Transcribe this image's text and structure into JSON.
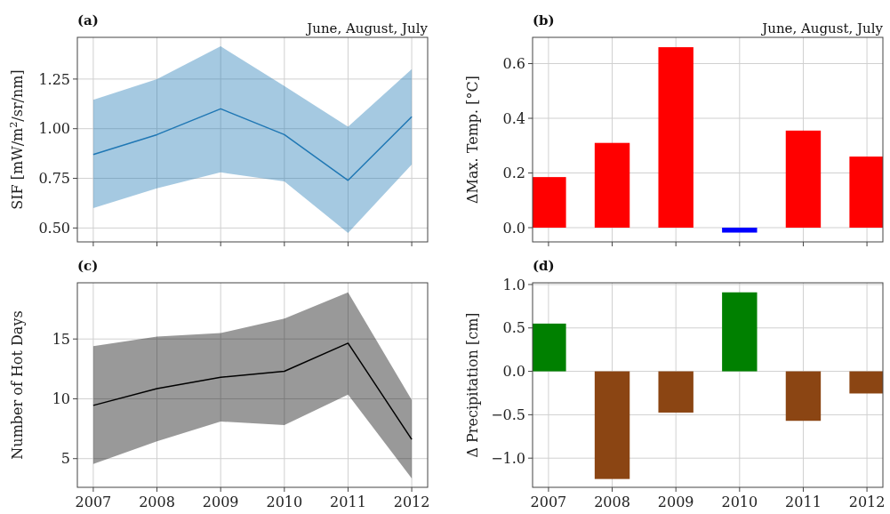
{
  "chart_data": [
    {
      "type": "line",
      "title": "(a)",
      "subtitle": "June, August, July",
      "ylabel": "SIF [mW/m$^{2}$/sr/nm]",
      "x": [
        2007,
        2008,
        2009,
        2010,
        2011,
        2012
      ],
      "xlim": [
        2006.75,
        2012.25
      ],
      "xticks": [
        2007,
        2008,
        2009,
        2010,
        2011,
        2012
      ],
      "ylim": [
        0.43,
        1.46
      ],
      "yticks": [
        {
          "value": 0.5,
          "label": "0.50"
        },
        {
          "value": 0.75,
          "label": "0.75"
        },
        {
          "value": 1.0,
          "label": "1.00"
        },
        {
          "value": 1.25,
          "label": "1.25"
        }
      ],
      "grid": true,
      "tick_labels": "y",
      "series": [
        {
          "color": "#1f77b4",
          "values": [
            0.87,
            0.97,
            1.1,
            0.97,
            0.74,
            1.06
          ],
          "lower": [
            0.6,
            0.7,
            0.78,
            0.735,
            0.475,
            0.82
          ],
          "upper": [
            1.145,
            1.25,
            1.415,
            1.215,
            1.01,
            1.3
          ]
        }
      ]
    },
    {
      "type": "bar",
      "title": "(b)",
      "subtitle": "June, August, July",
      "ylabel": "ΔMax. Temp. [°C]",
      "x": [
        2007,
        2008,
        2009,
        2010,
        2011,
        2012
      ],
      "xlim": [
        2006.75,
        2012.25
      ],
      "xticks": [
        2007,
        2008,
        2009,
        2010,
        2011,
        2012
      ],
      "ylim": [
        -0.052,
        0.696
      ],
      "yticks": [
        {
          "value": 0,
          "label": "0.0"
        },
        {
          "value": 0.2,
          "label": "0.2"
        },
        {
          "value": 0.4,
          "label": "0.4"
        },
        {
          "value": 0.6,
          "label": "0.6"
        }
      ],
      "grid": true,
      "tick_labels": "y",
      "values": [
        0.185,
        0.31,
        0.66,
        -0.018,
        0.355,
        0.26
      ],
      "colors": [
        "#ff0000",
        "#ff0000",
        "#ff0000",
        "#0000ff",
        "#ff0000",
        "#ff0000"
      ]
    },
    {
      "type": "line",
      "title": "(c)",
      "ylabel": "Number of Hot Days",
      "x": [
        2007,
        2008,
        2009,
        2010,
        2011,
        2012
      ],
      "xlim": [
        2006.75,
        2012.25
      ],
      "xticks": [
        2007,
        2008,
        2009,
        2010,
        2011,
        2012
      ],
      "ylim": [
        2.6,
        19.7
      ],
      "yticks": [
        5,
        10,
        15
      ],
      "grid": true,
      "series": [
        {
          "color": "#000000",
          "values": [
            9.45,
            10.85,
            11.8,
            12.3,
            14.65,
            6.6
          ],
          "lower": [
            4.55,
            6.45,
            8.1,
            7.8,
            10.35,
            3.35
          ],
          "upper": [
            14.4,
            15.2,
            15.5,
            16.7,
            18.9,
            9.9
          ]
        }
      ]
    },
    {
      "type": "bar",
      "title": "(d)",
      "ylabel": "Δ Precipitation [cm]",
      "x": [
        2007,
        2008,
        2009,
        2010,
        2011,
        2012
      ],
      "xlim": [
        2006.75,
        2012.25
      ],
      "xticks": [
        2007,
        2008,
        2009,
        2010,
        2011,
        2012
      ],
      "ylim": [
        -1.336,
        1.02
      ],
      "yticks": [
        {
          "value": -1,
          "label": "−1.0"
        },
        {
          "value": -0.5,
          "label": "−0.5"
        },
        {
          "value": 0,
          "label": "0.0"
        },
        {
          "value": 0.5,
          "label": "0.5"
        },
        {
          "value": 1,
          "label": "1.0"
        }
      ],
      "grid": true,
      "values": [
        0.55,
        -1.24,
        -0.475,
        0.91,
        -0.57,
        -0.255
      ],
      "colors": [
        "#008000",
        "#8b4513",
        "#8b4513",
        "#008000",
        "#8b4513",
        "#8b4513"
      ]
    }
  ]
}
